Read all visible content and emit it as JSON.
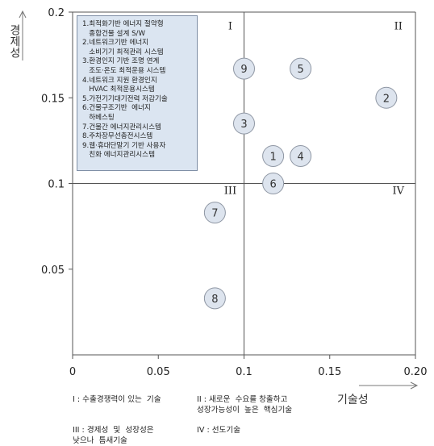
{
  "chart_data": {
    "type": "scatter",
    "xlabel": "기술성",
    "ylabel": "경제성",
    "xlim": [
      0,
      0.2
    ],
    "ylim": [
      0,
      0.2
    ],
    "x_ticks": [
      "0",
      "0.05",
      "0.1",
      "0.15",
      "0.20"
    ],
    "y_ticks": [
      "0.05",
      "0.1",
      "0.15",
      "0.2"
    ],
    "x_tick_values": [
      0,
      0.05,
      0.1,
      0.15,
      0.2
    ],
    "y_tick_values": [
      0.05,
      0.1,
      0.15,
      0.2
    ],
    "quadrant_split": {
      "x": 0.1,
      "y": 0.1
    },
    "quadrant_labels": [
      {
        "label": "I",
        "x": 0.092,
        "y": 0.19
      },
      {
        "label": "II",
        "x": 0.19,
        "y": 0.19
      },
      {
        "label": "III",
        "x": 0.092,
        "y": 0.094
      },
      {
        "label": "IV",
        "x": 0.19,
        "y": 0.094
      }
    ],
    "points": [
      {
        "label": "1",
        "x": 0.117,
        "y": 0.116
      },
      {
        "label": "2",
        "x": 0.183,
        "y": 0.15
      },
      {
        "label": "3",
        "x": 0.1,
        "y": 0.135
      },
      {
        "label": "4",
        "x": 0.133,
        "y": 0.116
      },
      {
        "label": "5",
        "x": 0.133,
        "y": 0.167
      },
      {
        "label": "6",
        "x": 0.117,
        "y": 0.1
      },
      {
        "label": "7",
        "x": 0.083,
        "y": 0.083
      },
      {
        "label": "8",
        "x": 0.083,
        "y": 0.033
      },
      {
        "label": "9",
        "x": 0.1,
        "y": 0.167
      }
    ],
    "legend_items": [
      "1.최적화기반 에너지 절약형",
      "   종합건물 설계 S/W",
      "2.네트워크기반 에너지",
      "   소비기기 최적관리 시스템",
      "3.환경인지 기반 조명 연계",
      "   조도·온도 최적운용 시스템",
      "4.네트워크 지원 환경인지",
      "   HVAC 최적운용시스템",
      "5.가전기기대기전력 저감기술",
      "6.건물구조기반  에너지",
      "   하베스팅",
      "7.건물간 에너지관리시스템",
      "8.주차장무선충전시스템",
      "9.웹·휴대단말기 기반 사용자",
      "   친화 에너지관리시스템"
    ],
    "footnotes": {
      "q1": "I : 수출경쟁력이 있는  기술",
      "q2": "II : 새로운  수요를 창출하고\n성장가능성이  높은  핵심기술",
      "q3": "III : 경제성  및  성장성은\n낮으나  틈새기술",
      "q4": "IV : 선도기술"
    },
    "colors": {
      "marker_fill": "#dde4ee",
      "marker_stroke": "#8e96a3",
      "legend_fill": "#dbe5f1",
      "axis": "#555555"
    }
  }
}
